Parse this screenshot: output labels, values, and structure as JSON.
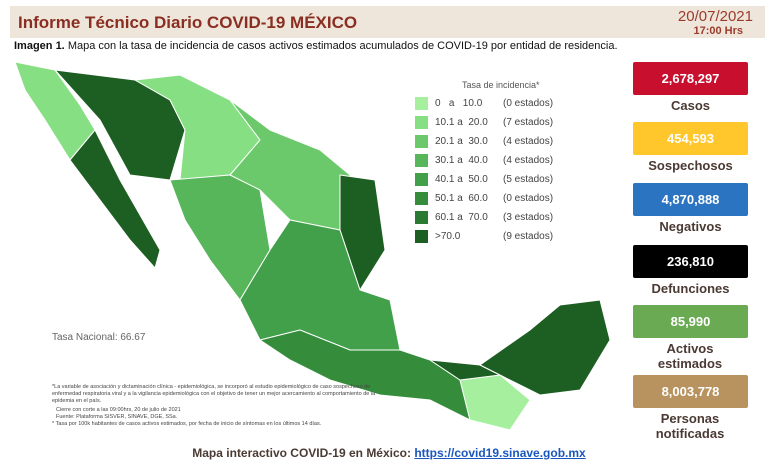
{
  "header": {
    "title": "Informe Técnico Diario COVID-19 MÉXICO",
    "date": "20/07/2021",
    "time": "17:00 Hrs"
  },
  "caption": {
    "label": "Imagen 1.",
    "text": "Mapa con la tasa de incidencia de casos activos estimados acumulados de COVID-19 por entidad de residencia."
  },
  "legend": {
    "title": "Tasa de incidencia*",
    "items": [
      {
        "range": "0   a   10.0",
        "count": "(0 estados)",
        "color": "#a6ef9e"
      },
      {
        "range": "10.1 a  20.0",
        "count": "(7 estados)",
        "color": "#86e083"
      },
      {
        "range": "20.1 a  30.0",
        "count": "(4 estados)",
        "color": "#6cc96b"
      },
      {
        "range": "30.1 a  40.0",
        "count": "(4 estados)",
        "color": "#57b55a"
      },
      {
        "range": "40.1 a  50.0",
        "count": "(5 estados)",
        "color": "#43a04a"
      },
      {
        "range": "50.1 a  60.0",
        "count": "(0 estados)",
        "color": "#358d3c"
      },
      {
        "range": "60.1 a  70.0",
        "count": "(3 estados)",
        "color": "#2a7a31"
      },
      {
        "range": ">70.0",
        "count": "(9 estados)",
        "color": "#1d5e22"
      }
    ]
  },
  "national_rate": "Tasa Nacional: 66.67",
  "footnotes": [
    "*La variable de asociación y dictaminación clínica - epidemiológica, se incorporó al estudio epidemiológico de caso sospechoso de enfermedad respiratoria viral y a la vigilancia epidemiológica con el objetivo de tener un mejor acercamiento al comportamiento de la epidemia en el país.",
    "Cierre con corte a las 09:00hrs, 20 de julio de 2021",
    "Fuente: Plataforma SISVER, SINAVE, DGE, SSa.",
    "* Tasa por 100k habitantes de casos activos estimados, por fecha de inicio de síntomas en los últimos 14 días."
  ],
  "stats": [
    {
      "value": "2,678,297",
      "label": "Casos",
      "color": "#c8102e"
    },
    {
      "value": "454,593",
      "label": "Sospechosos",
      "color": "#ffc72c"
    },
    {
      "value": "4,870,888",
      "label": "Negativos",
      "color": "#2b74c1"
    },
    {
      "value": "236,810",
      "label": "Defunciones",
      "color": "#000000"
    },
    {
      "value": "85,990",
      "label": "Activos estimados",
      "color": "#6aaa52"
    },
    {
      "value": "8,003,778",
      "label": "Personas notificadas",
      "color": "#b8925f"
    }
  ],
  "footer": {
    "text": "Mapa interactivo COVID-19 en México:",
    "link": "https://covid19.sinave.gob.mx"
  }
}
